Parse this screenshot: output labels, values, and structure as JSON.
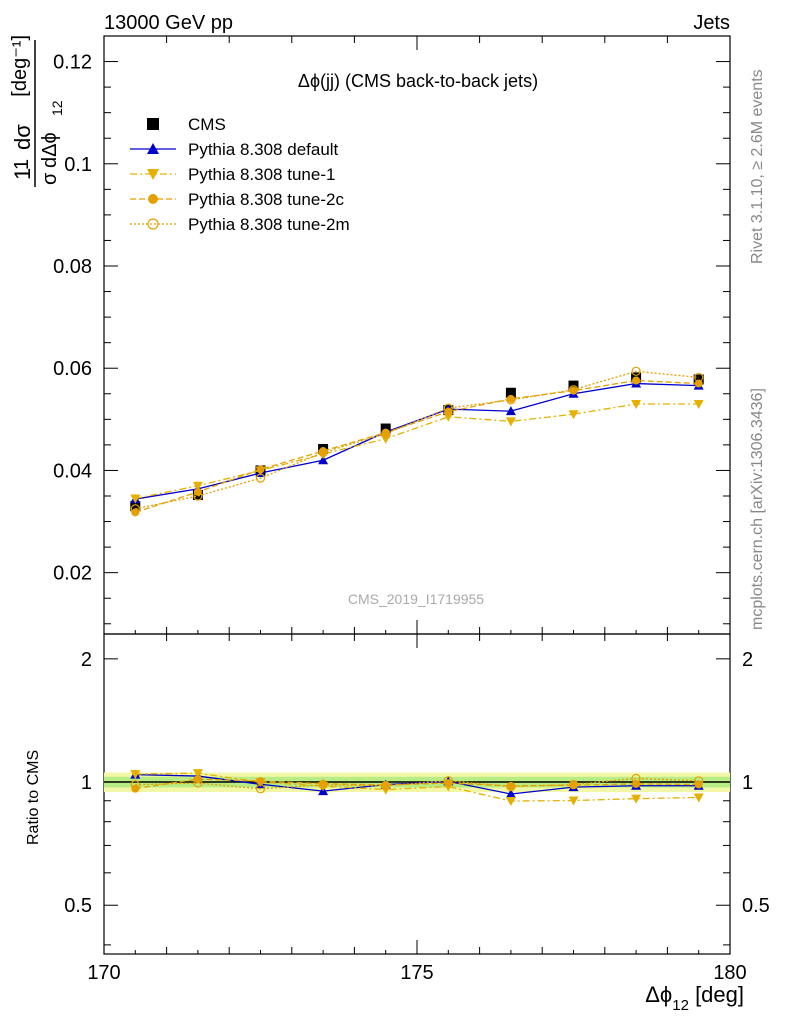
{
  "header": {
    "left": "13000 GeV pp",
    "right": "Jets"
  },
  "side_text": {
    "rivet": "Rivet 3.1.10, ≥ 2.6M events",
    "mcplots": "mcplots.cern.ch [arXiv:1306.3436]"
  },
  "watermark": "CMS_2019_I1719955",
  "chart_data": {
    "type": "line",
    "title": "Δϕ(jj) (CMS back-to-back jets)",
    "xlabel": "Δϕ₁₂ [deg]",
    "ylabel": "1/σ dσ/dΔϕ₁₂ [deg⁻¹]",
    "ratio_ylabel": "Ratio to CMS",
    "xlim": [
      170,
      180
    ],
    "ylim": [
      0.008,
      0.125
    ],
    "ratio_ylim": [
      0.38,
      2.3
    ],
    "x_ticks": [
      "170",
      "175",
      "180"
    ],
    "y_ticks": [
      "0.02",
      "0.04",
      "0.06",
      "0.08",
      "0.1",
      "0.12"
    ],
    "ratio_ticks": [
      "0.5",
      "1",
      "2"
    ],
    "x": [
      170.5,
      171.5,
      172.5,
      173.5,
      174.5,
      175.5,
      176.5,
      177.5,
      178.5,
      179.5
    ],
    "series": [
      {
        "name": "CMS",
        "color": "#000000",
        "marker": "square",
        "values": [
          0.033,
          0.0352,
          0.04,
          0.0442,
          0.0482,
          0.0518,
          0.0552,
          0.0566,
          0.0582,
          0.0578
        ]
      },
      {
        "name": "Pythia 8.308 default",
        "color": "#0000cc",
        "marker": "triangle-up",
        "dash": "",
        "values": [
          0.0344,
          0.0364,
          0.0395,
          0.042,
          0.0475,
          0.052,
          0.0516,
          0.055,
          0.057,
          0.0566
        ]
      },
      {
        "name": "Pythia 8.308 tune-1",
        "color": "#e6b000",
        "marker": "triangle-down",
        "dash": "7,3,2,3",
        "values": [
          0.0345,
          0.037,
          0.04,
          0.0432,
          0.0462,
          0.0505,
          0.0496,
          0.051,
          0.053,
          0.053
        ]
      },
      {
        "name": "Pythia 8.308 tune-2c",
        "color": "#e69f00",
        "marker": "circle",
        "dash": "6,3",
        "values": [
          0.0318,
          0.0358,
          0.0402,
          0.0438,
          0.0474,
          0.0515,
          0.054,
          0.0556,
          0.0576,
          0.057
        ]
      },
      {
        "name": "Pythia 8.308 tune-2m",
        "color": "#e69f00",
        "marker": "circle-open",
        "dash": "2,2",
        "values": [
          0.0325,
          0.035,
          0.0385,
          0.0435,
          0.0472,
          0.0522,
          0.0538,
          0.0558,
          0.0594,
          0.0582
        ]
      }
    ],
    "grid": false,
    "legend": "top-left"
  }
}
